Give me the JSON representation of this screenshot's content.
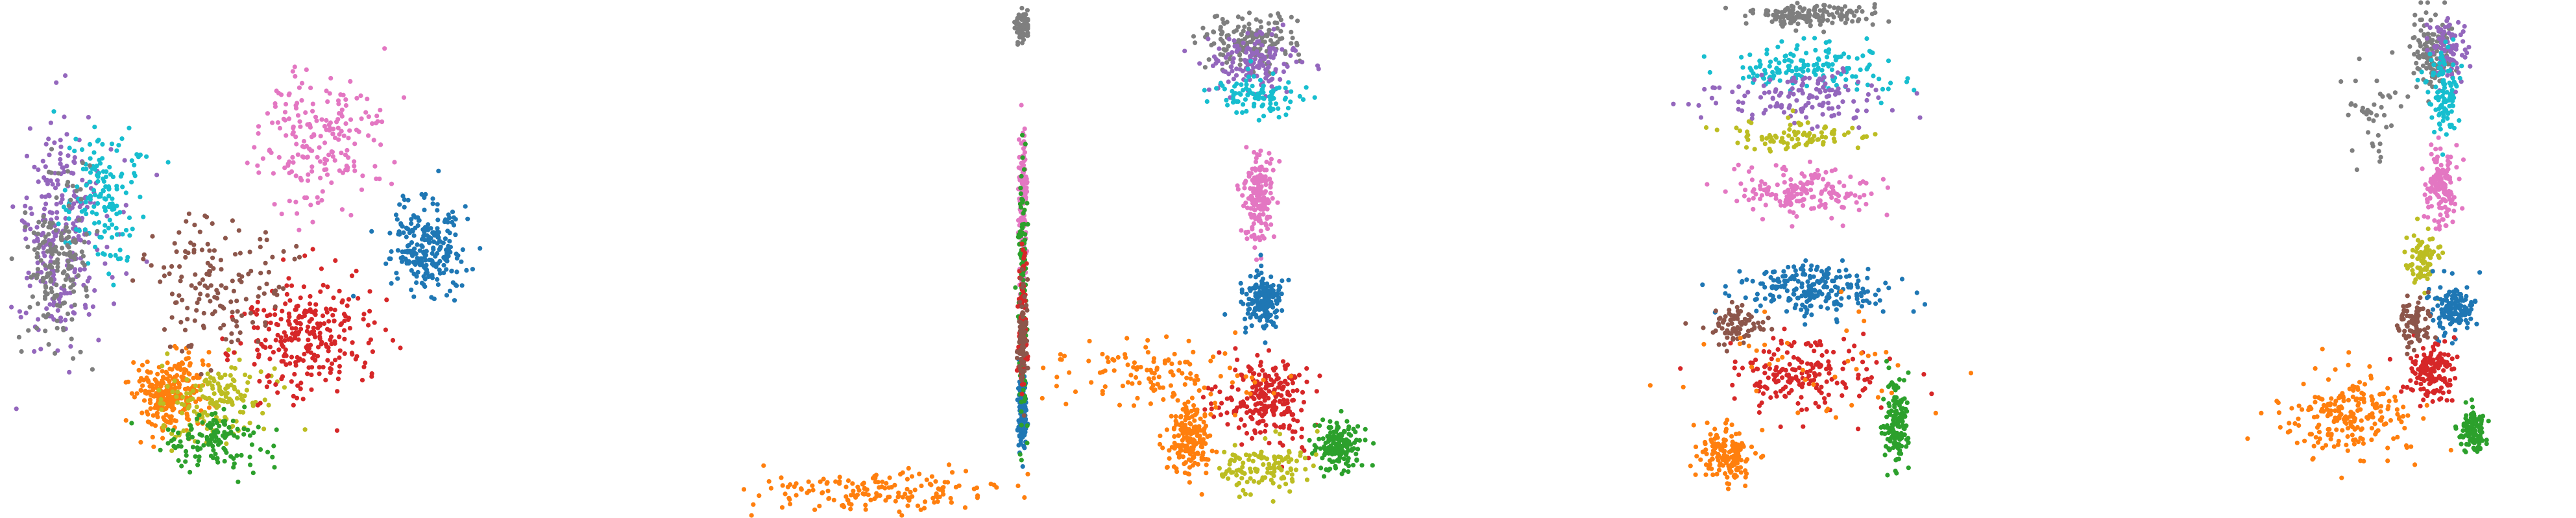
{
  "chart_data": {
    "type": "scatter",
    "title": "",
    "xlabel": "",
    "ylabel": "",
    "axes_visible": false,
    "grid": false,
    "legend": "none",
    "palette": {
      "blue": "#1f77b4",
      "orange": "#ff7f0e",
      "green": "#2ca02c",
      "red": "#d62728",
      "purple": "#9467bd",
      "brown": "#8c564b",
      "pink": "#e377c2",
      "gray": "#7f7f7f",
      "olive": "#bcbd22",
      "cyan": "#17becf"
    },
    "panels": [
      {
        "id": 1,
        "shape": "horseshoe embedding",
        "clusters": [
          {
            "color": "purple",
            "center": [
              0.12,
              0.45
            ],
            "spread": [
              0.09,
              0.22
            ],
            "count": 260
          },
          {
            "color": "cyan",
            "center": [
              0.2,
              0.38
            ],
            "spread": [
              0.08,
              0.14
            ],
            "count": 150
          },
          {
            "color": "gray",
            "center": [
              0.11,
              0.5
            ],
            "spread": [
              0.06,
              0.16
            ],
            "count": 170
          },
          {
            "color": "orange",
            "center": [
              0.33,
              0.76
            ],
            "spread": [
              0.07,
              0.07
            ],
            "count": 260
          },
          {
            "color": "olive",
            "center": [
              0.42,
              0.77
            ],
            "spread": [
              0.11,
              0.08
            ],
            "count": 150
          },
          {
            "color": "green",
            "center": [
              0.42,
              0.85
            ],
            "spread": [
              0.1,
              0.06
            ],
            "count": 130
          },
          {
            "color": "red",
            "center": [
              0.6,
              0.65
            ],
            "spread": [
              0.13,
              0.12
            ],
            "count": 270
          },
          {
            "color": "brown",
            "center": [
              0.42,
              0.55
            ],
            "spread": [
              0.13,
              0.12
            ],
            "count": 150
          },
          {
            "color": "pink",
            "center": [
              0.62,
              0.27
            ],
            "spread": [
              0.12,
              0.13
            ],
            "count": 200
          },
          {
            "color": "blue",
            "center": [
              0.83,
              0.48
            ],
            "spread": [
              0.08,
              0.09
            ],
            "count": 230
          }
        ]
      },
      {
        "id": 2,
        "shape": "compressed right-edge embedding",
        "clusters": [
          {
            "color": "orange",
            "center": [
              0.7,
              0.95
            ],
            "spread": [
              0.25,
              0.04
            ],
            "count": 160
          },
          {
            "color": "pink",
            "center": [
              0.985,
              0.38
            ],
            "spread": [
              0.008,
              0.14
            ],
            "count": 140
          },
          {
            "color": "blue",
            "center": [
              0.985,
              0.8
            ],
            "spread": [
              0.008,
              0.07
            ],
            "count": 140
          },
          {
            "color": "gray",
            "center": [
              0.985,
              0.05
            ],
            "spread": [
              0.02,
              0.03
            ],
            "count": 60
          },
          {
            "color": "green",
            "center": [
              0.985,
              0.55
            ],
            "spread": [
              0.008,
              0.25
            ],
            "count": 120
          },
          {
            "color": "red",
            "center": [
              0.985,
              0.62
            ],
            "spread": [
              0.008,
              0.15
            ],
            "count": 90
          },
          {
            "color": "brown",
            "center": [
              0.985,
              0.66
            ],
            "spread": [
              0.008,
              0.1
            ],
            "count": 70
          }
        ]
      },
      {
        "id": 3,
        "shape": "dumbbell embedding",
        "clusters": [
          {
            "color": "gray",
            "center": [
              0.43,
              0.08
            ],
            "spread": [
              0.09,
              0.05
            ],
            "count": 170
          },
          {
            "color": "purple",
            "center": [
              0.43,
              0.12
            ],
            "spread": [
              0.1,
              0.06
            ],
            "count": 140
          },
          {
            "color": "cyan",
            "center": [
              0.45,
              0.18
            ],
            "spread": [
              0.08,
              0.04
            ],
            "count": 90
          },
          {
            "color": "pink",
            "center": [
              0.44,
              0.38
            ],
            "spread": [
              0.03,
              0.09
            ],
            "count": 180
          },
          {
            "color": "blue",
            "center": [
              0.45,
              0.58
            ],
            "spread": [
              0.035,
              0.05
            ],
            "count": 170
          },
          {
            "color": "red",
            "center": [
              0.45,
              0.77
            ],
            "spread": [
              0.09,
              0.08
            ],
            "count": 230
          },
          {
            "color": "orange",
            "center": [
              0.31,
              0.85
            ],
            "spread": [
              0.04,
              0.07
            ],
            "count": 200
          },
          {
            "color": "green",
            "center": [
              0.6,
              0.86
            ],
            "spread": [
              0.04,
              0.05
            ],
            "count": 170
          },
          {
            "color": "olive",
            "center": [
              0.45,
              0.9
            ],
            "spread": [
              0.09,
              0.05
            ],
            "count": 120
          },
          {
            "color": "orange",
            "center": [
              0.25,
              0.72
            ],
            "spread": [
              0.2,
              0.06
            ],
            "count": 120
          }
        ]
      },
      {
        "id": 4,
        "shape": "ring embedding",
        "clusters": [
          {
            "color": "gray",
            "center": [
              0.5,
              0.03
            ],
            "spread": [
              0.12,
              0.02
            ],
            "count": 160
          },
          {
            "color": "cyan",
            "center": [
              0.52,
              0.13
            ],
            "spread": [
              0.17,
              0.05
            ],
            "count": 150
          },
          {
            "color": "purple",
            "center": [
              0.5,
              0.19
            ],
            "spread": [
              0.16,
              0.05
            ],
            "count": 130
          },
          {
            "color": "olive",
            "center": [
              0.48,
              0.26
            ],
            "spread": [
              0.15,
              0.03
            ],
            "count": 90
          },
          {
            "color": "pink",
            "center": [
              0.5,
              0.37
            ],
            "spread": [
              0.13,
              0.05
            ],
            "count": 170
          },
          {
            "color": "blue",
            "center": [
              0.52,
              0.56
            ],
            "spread": [
              0.14,
              0.05
            ],
            "count": 220
          },
          {
            "color": "red",
            "center": [
              0.5,
              0.72
            ],
            "spread": [
              0.15,
              0.07
            ],
            "count": 180
          },
          {
            "color": "brown",
            "center": [
              0.37,
              0.63
            ],
            "spread": [
              0.06,
              0.04
            ],
            "count": 80
          },
          {
            "color": "orange",
            "center": [
              0.35,
              0.88
            ],
            "spread": [
              0.05,
              0.05
            ],
            "count": 150
          },
          {
            "color": "green",
            "center": [
              0.68,
              0.82
            ],
            "spread": [
              0.025,
              0.09
            ],
            "count": 130
          },
          {
            "color": "orange",
            "center": [
              0.5,
              0.72
            ],
            "spread": [
              0.25,
              0.15
            ],
            "count": 40
          }
        ]
      },
      {
        "id": 5,
        "shape": "vertical tower embedding",
        "clusters": [
          {
            "color": "gray",
            "center": [
              0.72,
              0.1
            ],
            "spread": [
              0.04,
              0.08
            ],
            "count": 130
          },
          {
            "color": "purple",
            "center": [
              0.75,
              0.1
            ],
            "spread": [
              0.04,
              0.06
            ],
            "count": 90
          },
          {
            "color": "cyan",
            "center": [
              0.74,
              0.18
            ],
            "spread": [
              0.03,
              0.08
            ],
            "count": 110
          },
          {
            "color": "pink",
            "center": [
              0.74,
              0.36
            ],
            "spread": [
              0.03,
              0.07
            ],
            "count": 140
          },
          {
            "color": "olive",
            "center": [
              0.7,
              0.5
            ],
            "spread": [
              0.03,
              0.05
            ],
            "count": 80
          },
          {
            "color": "blue",
            "center": [
              0.76,
              0.6
            ],
            "spread": [
              0.04,
              0.05
            ],
            "count": 140
          },
          {
            "color": "red",
            "center": [
              0.72,
              0.72
            ],
            "spread": [
              0.05,
              0.06
            ],
            "count": 150
          },
          {
            "color": "brown",
            "center": [
              0.68,
              0.62
            ],
            "spread": [
              0.04,
              0.05
            ],
            "count": 80
          },
          {
            "color": "orange",
            "center": [
              0.56,
              0.8
            ],
            "spread": [
              0.12,
              0.08
            ],
            "count": 220
          },
          {
            "color": "green",
            "center": [
              0.8,
              0.83
            ],
            "spread": [
              0.025,
              0.04
            ],
            "count": 110
          },
          {
            "color": "gray",
            "center": [
              0.6,
              0.22
            ],
            "spread": [
              0.05,
              0.12
            ],
            "count": 40
          }
        ]
      }
    ]
  }
}
